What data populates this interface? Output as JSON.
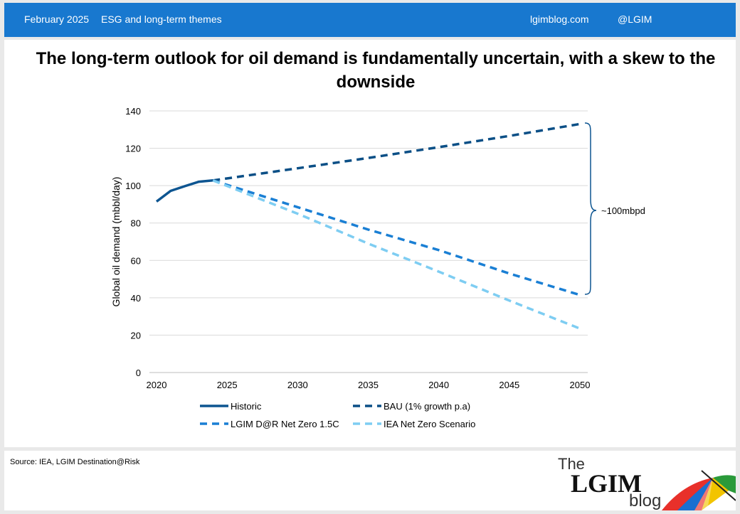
{
  "header": {
    "date": "February 2025",
    "category": "ESG and long-term themes",
    "site": "lgimblog.com",
    "handle": "@LGIM"
  },
  "title": "The long-term outlook for oil demand is fundamentally uncertain, with a skew to the downside",
  "annotation": "~100mbpd",
  "footer": {
    "source": "Source: IEA, LGIM Destination@Risk",
    "logo": {
      "line1": "The",
      "line2": "LGIM",
      "line3": "blog"
    }
  },
  "colors": {
    "header": "#1878cf",
    "historic": "#0d5591",
    "bau": "#0b4f86",
    "lgim": "#1a7fd4",
    "iea": "#7ecdf2"
  },
  "chart_data": {
    "type": "line",
    "title": "The long-term outlook for oil demand is fundamentally uncertain, with a skew to the downside",
    "xlabel": "",
    "ylabel": "Global oil demand (mbbl/day)",
    "xlim": [
      2020,
      2050
    ],
    "ylim": [
      0,
      140
    ],
    "xticks": [
      2020,
      2025,
      2030,
      2035,
      2040,
      2045,
      2050
    ],
    "yticks": [
      0,
      20,
      40,
      60,
      80,
      100,
      120,
      140
    ],
    "grid": "horizontal",
    "legend_position": "bottom",
    "series": [
      {
        "name": "Historic",
        "style": "solid",
        "color": "#0d5591",
        "points": [
          [
            2020,
            91.5
          ],
          [
            2021,
            97.2
          ],
          [
            2022,
            99.7
          ],
          [
            2023,
            102.1
          ],
          [
            2024,
            102.8
          ]
        ]
      },
      {
        "name": "BAU (1% growth p.a)",
        "style": "dashed",
        "color": "#0b4f86",
        "points": [
          [
            2024,
            102.8
          ],
          [
            2030,
            109.3
          ],
          [
            2035,
            114.8
          ],
          [
            2040,
            120.6
          ],
          [
            2045,
            126.6
          ],
          [
            2050,
            133.0
          ]
        ]
      },
      {
        "name": "LGIM D@R Net Zero 1.5C",
        "style": "dashed",
        "color": "#1a7fd4",
        "points": [
          [
            2024,
            102.8
          ],
          [
            2030,
            88.5
          ],
          [
            2035,
            76.5
          ],
          [
            2040,
            65.5
          ],
          [
            2045,
            53.0
          ],
          [
            2050,
            41.5
          ]
        ]
      },
      {
        "name": "IEA Net Zero Scenario",
        "style": "dashed",
        "color": "#7ecdf2",
        "points": [
          [
            2024,
            102.8
          ],
          [
            2030,
            85.0
          ],
          [
            2035,
            69.0
          ],
          [
            2040,
            54.0
          ],
          [
            2045,
            38.5
          ],
          [
            2050,
            23.5
          ]
        ]
      }
    ]
  }
}
